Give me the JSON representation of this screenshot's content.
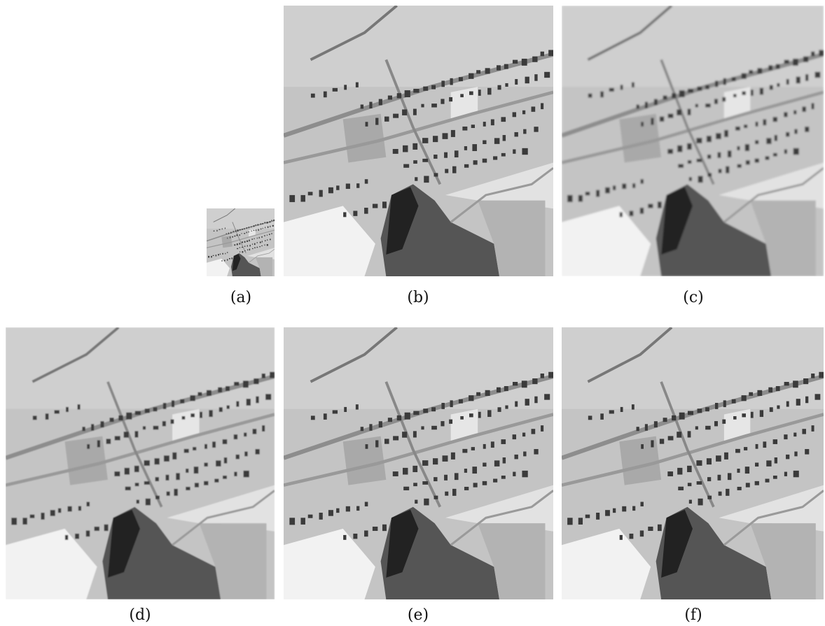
{
  "figure": {
    "captions": [
      "(a)",
      "(b)",
      "(c)",
      "(d)",
      "(e)",
      "(f)"
    ]
  }
}
